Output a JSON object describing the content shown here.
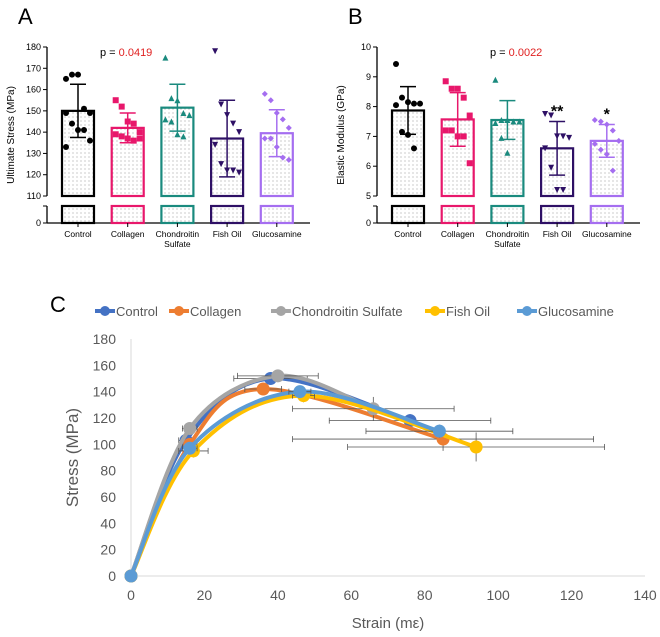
{
  "chart_data": [
    {
      "panel": "A",
      "type": "bar",
      "ylabel": "Ultimate Stress (MPa)",
      "annotation_prefix": "p = ",
      "annotation_value": "0.0419",
      "yticks": [
        0,
        110,
        120,
        130,
        140,
        150,
        160,
        170,
        180
      ],
      "ylim_upper": [
        110,
        180
      ],
      "axis_break": true,
      "categories": [
        "Control",
        "Collagen",
        "Chondroitin|Sulfate",
        "Fish Oil",
        "Glucosamine"
      ],
      "means": [
        150,
        142,
        151.5,
        137,
        139.5
      ],
      "sd": [
        12.5,
        7,
        11,
        18,
        11
      ],
      "significance": [
        "",
        "",
        "",
        "",
        ""
      ],
      "points": [
        [
          165,
          167,
          167,
          151,
          149,
          149,
          144,
          141,
          141,
          136,
          133
        ],
        [
          155,
          152,
          145,
          144,
          140,
          139,
          138,
          137,
          136,
          137
        ],
        [
          175,
          156,
          155,
          149,
          148,
          146,
          145,
          139,
          138
        ],
        [
          178,
          153,
          148,
          144,
          140,
          134,
          125,
          122,
          122,
          121
        ],
        [
          158,
          155,
          149,
          146,
          142,
          137,
          137,
          133,
          128,
          127
        ]
      ]
    },
    {
      "panel": "B",
      "type": "bar",
      "ylabel": "Elastic Modulus (GPa)",
      "annotation_prefix": "p = ",
      "annotation_value": "0.0022",
      "yticks": [
        0,
        5,
        6,
        7,
        8,
        9,
        10
      ],
      "ylim_upper": [
        5,
        10
      ],
      "axis_break": true,
      "categories": [
        "Control",
        "Collagen",
        "Chondroitin|Sulfate",
        "Fish Oil",
        "Glucosamine"
      ],
      "means": [
        7.87,
        7.57,
        7.55,
        6.6,
        6.85
      ],
      "sd": [
        0.8,
        0.9,
        0.65,
        0.9,
        0.55
      ],
      "significance": [
        "",
        "",
        "",
        "**",
        "*"
      ],
      "points": [
        [
          9.43,
          8.3,
          8.15,
          8.1,
          8.1,
          8.05,
          7.15,
          7.05,
          6.6
        ],
        [
          8.85,
          8.6,
          8.6,
          8.3,
          7.7,
          7.2,
          7.2,
          7.0,
          7.0,
          6.1
        ],
        [
          8.9,
          7.55,
          7.55,
          7.5,
          7.5,
          7.45,
          6.95,
          6.45
        ],
        [
          7.75,
          7.7,
          7.0,
          7.0,
          6.95,
          6.6,
          5.95,
          5.2,
          5.2
        ],
        [
          7.55,
          7.5,
          7.4,
          7.2,
          6.85,
          6.75,
          6.55,
          6.4,
          5.85
        ]
      ]
    },
    {
      "panel": "C",
      "type": "line",
      "xlabel": "Strain (mε)",
      "ylabel": "Stress (MPa)",
      "xlim": [
        0,
        140
      ],
      "ylim": [
        0,
        180
      ],
      "xticks": [
        0,
        20,
        40,
        60,
        80,
        100,
        120,
        140
      ],
      "yticks": [
        0,
        20,
        40,
        60,
        80,
        100,
        120,
        140,
        160,
        180
      ],
      "legend": "top",
      "series": [
        {
          "name": "Control",
          "color": "#4472c4",
          "points": [
            [
              0,
              0,
              0,
              0
            ],
            [
              15,
              103,
              2,
              3
            ],
            [
              38,
              150,
              10,
              3
            ],
            [
              76,
              118,
              22,
              5
            ]
          ]
        },
        {
          "name": "Collagen",
          "color": "#ed7d31",
          "points": [
            [
              0,
              0,
              0,
              0
            ],
            [
              16,
              100,
              2,
              4
            ],
            [
              36,
              142,
              5,
              3
            ],
            [
              85,
              104,
              41,
              9
            ]
          ]
        },
        {
          "name": "Chondroitin Sulfate",
          "color": "#a5a5a5",
          "points": [
            [
              0,
              0,
              0,
              0
            ],
            [
              16,
              112,
              2,
              4
            ],
            [
              40,
              152,
              11,
              3
            ],
            [
              66,
              127,
              22,
              9
            ]
          ]
        },
        {
          "name": "Fish Oil",
          "color": "#ffc000",
          "points": [
            [
              0,
              0,
              0,
              0
            ],
            [
              17,
              95,
              4,
              5
            ],
            [
              47,
              137,
              3,
              5
            ],
            [
              94,
              98,
              35,
              11
            ]
          ]
        },
        {
          "name": "Glucosamine",
          "color": "#5b9bd5",
          "points": [
            [
              0,
              0,
              0,
              0
            ],
            [
              16,
              97,
              2,
              3
            ],
            [
              46,
              140,
              3,
              3
            ],
            [
              84,
              110,
              20,
              5
            ]
          ]
        }
      ]
    }
  ],
  "bar_colors": [
    "#000000",
    "#e8176b",
    "#1a8a7e",
    "#2e1065",
    "#a56ef0"
  ],
  "significance_color": "#e02020"
}
